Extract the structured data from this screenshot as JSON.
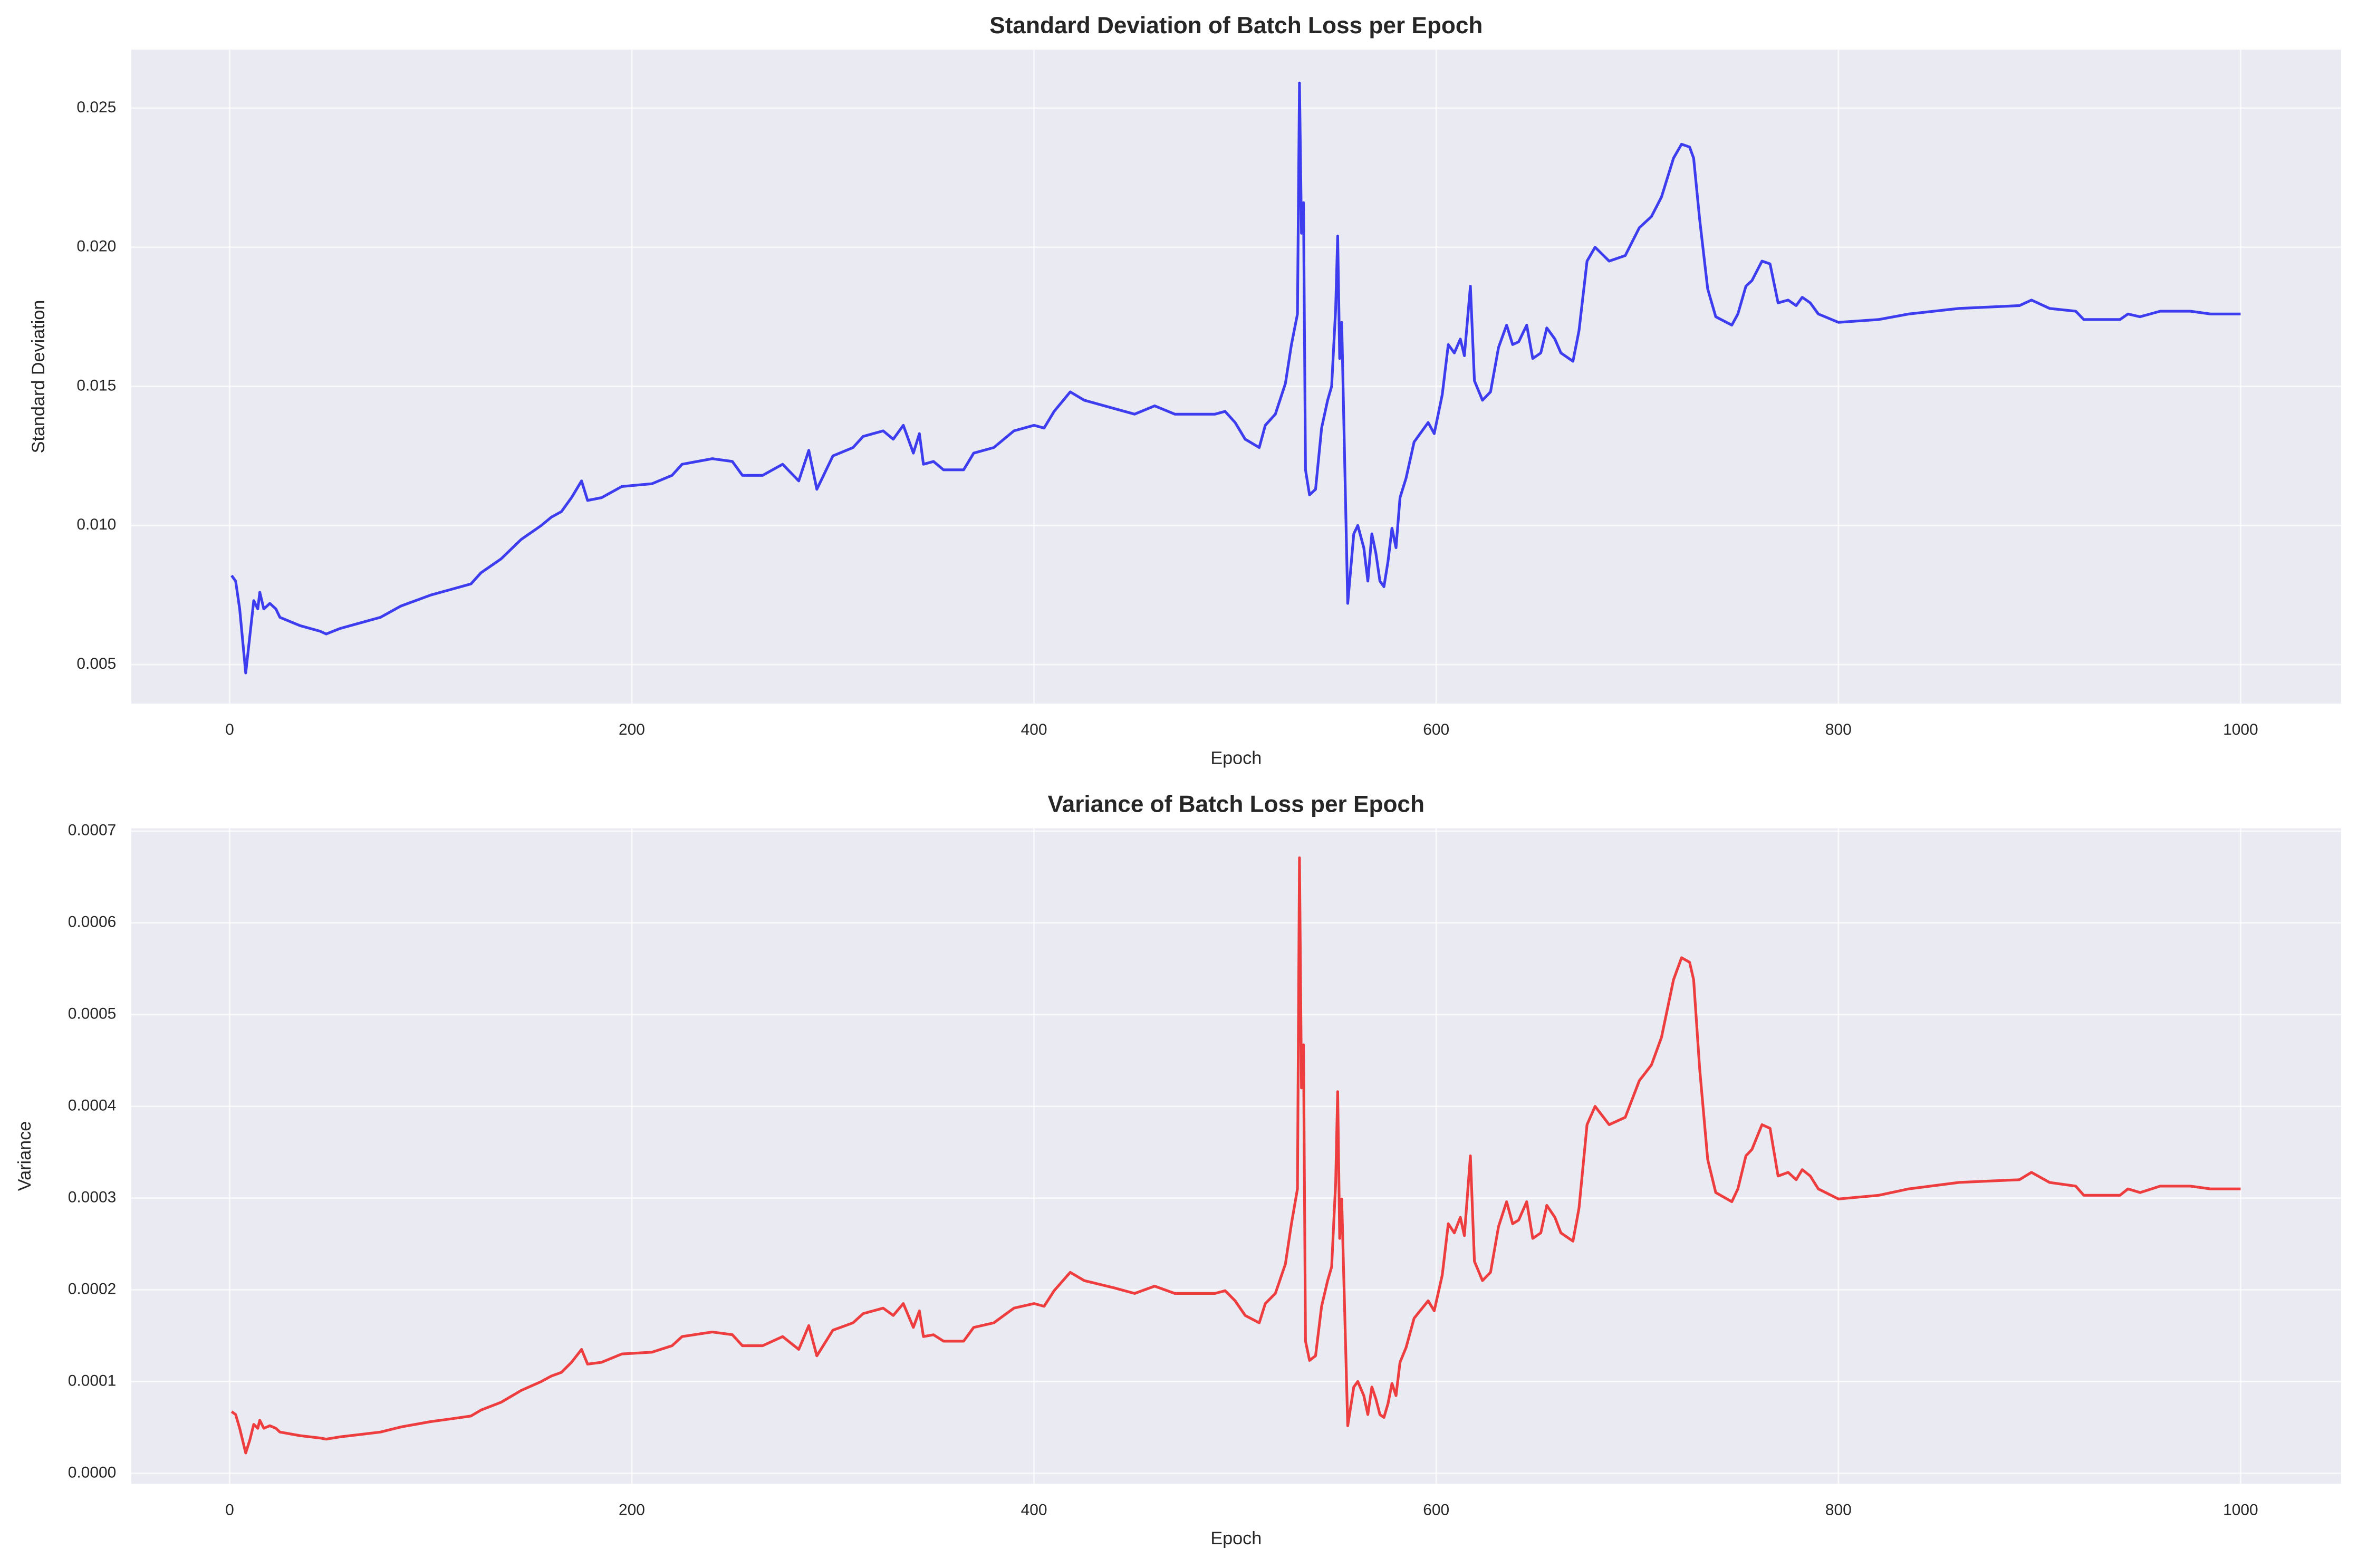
{
  "chart_data": [
    {
      "type": "line",
      "title": "Standard Deviation of Batch Loss per Epoch",
      "xlabel": "Epoch",
      "ylabel": "Standard Deviation",
      "color": "#2a2aee",
      "grid": true,
      "xlim": [
        -48.95,
        1049.95
      ],
      "xticks": [
        0,
        200,
        400,
        600,
        800,
        1000
      ],
      "ylim": [
        0.0036,
        0.0271
      ],
      "yticks": [
        0.005,
        {
          "value": 0.01,
          "label": "0.010"
        },
        0.015,
        {
          "value": 0.02,
          "label": "0.020"
        },
        0.025
      ],
      "x": [
        1,
        3,
        5,
        8,
        10,
        12,
        14,
        15,
        17,
        20,
        23,
        25,
        35,
        45,
        48,
        55,
        65,
        75,
        85,
        100,
        110,
        120,
        125,
        135,
        145,
        155,
        160,
        165,
        170,
        175,
        178,
        185,
        195,
        210,
        220,
        225,
        240,
        250,
        255,
        265,
        275,
        283,
        288,
        292,
        300,
        310,
        315,
        325,
        330,
        335,
        340,
        343,
        345,
        350,
        355,
        365,
        370,
        380,
        390,
        400,
        405,
        410,
        418,
        425,
        440,
        450,
        460,
        470,
        490,
        495,
        500,
        505,
        512,
        515,
        520,
        525,
        528,
        531,
        532,
        533,
        534,
        535,
        537,
        540,
        543,
        546,
        548,
        550,
        551,
        552,
        553,
        556,
        559,
        561,
        564,
        566,
        568,
        570,
        572,
        574,
        576,
        578,
        580,
        582,
        585,
        589,
        596,
        599,
        603,
        606,
        609,
        612,
        614,
        617,
        619,
        623,
        627,
        631,
        635,
        638,
        641,
        645,
        648,
        652,
        655,
        659,
        662,
        668,
        671,
        675,
        679,
        686,
        694,
        701,
        707,
        712,
        718,
        722,
        726,
        728,
        731,
        735,
        739,
        747,
        750,
        754,
        757,
        762,
        766,
        770,
        775,
        779,
        782,
        786,
        790,
        800,
        820,
        835,
        860,
        890,
        896,
        905,
        918,
        922,
        940,
        944,
        950,
        960,
        975,
        985,
        1000
      ],
      "values": [
        0.0082,
        0.008,
        0.007,
        0.0047,
        0.006,
        0.0073,
        0.007,
        0.0076,
        0.007,
        0.0072,
        0.007,
        0.0067,
        0.0064,
        0.0062,
        0.0061,
        0.0063,
        0.0065,
        0.0067,
        0.0071,
        0.0075,
        0.0077,
        0.0079,
        0.0083,
        0.0088,
        0.0095,
        0.01,
        0.0103,
        0.0105,
        0.011,
        0.0116,
        0.0109,
        0.011,
        0.0114,
        0.0115,
        0.0118,
        0.0122,
        0.0124,
        0.0123,
        0.0118,
        0.0118,
        0.0122,
        0.0116,
        0.0127,
        0.0113,
        0.0125,
        0.0128,
        0.0132,
        0.0134,
        0.0131,
        0.0136,
        0.0126,
        0.0133,
        0.0122,
        0.0123,
        0.012,
        0.012,
        0.0126,
        0.0128,
        0.0134,
        0.0136,
        0.0135,
        0.0141,
        0.0148,
        0.0145,
        0.0142,
        0.014,
        0.0143,
        0.014,
        0.014,
        0.0141,
        0.0137,
        0.0131,
        0.0128,
        0.0136,
        0.014,
        0.0151,
        0.0165,
        0.0176,
        0.0259,
        0.0205,
        0.0216,
        0.012,
        0.0111,
        0.0113,
        0.0135,
        0.0145,
        0.015,
        0.0178,
        0.0204,
        0.016,
        0.0173,
        0.0072,
        0.0097,
        0.01,
        0.0092,
        0.008,
        0.0097,
        0.009,
        0.008,
        0.0078,
        0.0087,
        0.0099,
        0.0092,
        0.011,
        0.0117,
        0.013,
        0.0137,
        0.0133,
        0.0147,
        0.0165,
        0.0162,
        0.0167,
        0.0161,
        0.0186,
        0.0152,
        0.0145,
        0.0148,
        0.0164,
        0.0172,
        0.0165,
        0.0166,
        0.0172,
        0.016,
        0.0162,
        0.0171,
        0.0167,
        0.0162,
        0.0159,
        0.017,
        0.0195,
        0.02,
        0.0195,
        0.0197,
        0.0207,
        0.0211,
        0.0218,
        0.0232,
        0.0237,
        0.0236,
        0.0232,
        0.021,
        0.0185,
        0.0175,
        0.0172,
        0.0176,
        0.0186,
        0.0188,
        0.0195,
        0.0194,
        0.018,
        0.0181,
        0.0179,
        0.0182,
        0.018,
        0.0176,
        0.0173,
        0.0174,
        0.0176,
        0.0178,
        0.0179,
        0.0181,
        0.0178,
        0.0177,
        0.0174,
        0.0174,
        0.0176,
        0.0175,
        0.0177,
        0.0177,
        0.0176,
        0.0176
      ]
    },
    {
      "type": "line",
      "title": "Variance of Batch Loss per Epoch",
      "xlabel": "Epoch",
      "ylabel": "Variance",
      "color": "#ee2a2a",
      "grid": true,
      "xlim": [
        -48.95,
        1049.95
      ],
      "xticks": [
        0,
        200,
        400,
        600,
        800,
        1000
      ],
      "ylim": [
        -1.15e-05,
        0.000703
      ],
      "yticks": [
        {
          "value": 0,
          "label": "0.0000"
        },
        0.0001,
        0.0002,
        0.0003,
        0.0004,
        0.0005,
        0.0006,
        0.0007
      ],
      "x": [
        1,
        3,
        5,
        8,
        10,
        12,
        14,
        15,
        17,
        20,
        23,
        25,
        35,
        45,
        48,
        55,
        65,
        75,
        85,
        100,
        110,
        120,
        125,
        135,
        145,
        155,
        160,
        165,
        170,
        175,
        178,
        185,
        195,
        210,
        220,
        225,
        240,
        250,
        255,
        265,
        275,
        283,
        288,
        292,
        300,
        310,
        315,
        325,
        330,
        335,
        340,
        343,
        345,
        350,
        355,
        365,
        370,
        380,
        390,
        400,
        405,
        410,
        418,
        425,
        440,
        450,
        460,
        470,
        490,
        495,
        500,
        505,
        512,
        515,
        520,
        525,
        528,
        531,
        532,
        533,
        534,
        535,
        537,
        540,
        543,
        546,
        548,
        550,
        551,
        552,
        553,
        556,
        559,
        561,
        564,
        566,
        568,
        570,
        572,
        574,
        576,
        578,
        580,
        582,
        585,
        589,
        596,
        599,
        603,
        606,
        609,
        612,
        614,
        617,
        619,
        623,
        627,
        631,
        635,
        638,
        641,
        645,
        648,
        652,
        655,
        659,
        662,
        668,
        671,
        675,
        679,
        686,
        694,
        701,
        707,
        712,
        718,
        722,
        726,
        728,
        731,
        735,
        739,
        747,
        750,
        754,
        757,
        762,
        766,
        770,
        775,
        779,
        782,
        786,
        790,
        800,
        820,
        835,
        860,
        890,
        896,
        905,
        918,
        922,
        940,
        944,
        950,
        960,
        975,
        985,
        1000
      ],
      "values": [
        6.72e-05,
        6.4e-05,
        4.9e-05,
        2.21e-05,
        3.6e-05,
        5.33e-05,
        4.9e-05,
        5.78e-05,
        4.9e-05,
        5.18e-05,
        4.9e-05,
        4.49e-05,
        4.1e-05,
        3.84e-05,
        3.72e-05,
        3.97e-05,
        4.23e-05,
        4.49e-05,
        5.04e-05,
        5.63e-05,
        5.93e-05,
        6.24e-05,
        6.89e-05,
        7.74e-05,
        9.03e-05,
        0.0001,
        0.000106,
        0.00011,
        0.000121,
        0.000135,
        0.000119,
        0.000121,
        0.00013,
        0.000132,
        0.000139,
        0.000149,
        0.000154,
        0.000151,
        0.000139,
        0.000139,
        0.000149,
        0.000135,
        0.000161,
        0.000128,
        0.000156,
        0.000164,
        0.000174,
        0.00018,
        0.000172,
        0.000185,
        0.000159,
        0.000177,
        0.000149,
        0.000151,
        0.000144,
        0.000144,
        0.000159,
        0.000164,
        0.00018,
        0.000185,
        0.000182,
        0.000199,
        0.000219,
        0.00021,
        0.000202,
        0.000196,
        0.000204,
        0.000196,
        0.000196,
        0.000199,
        0.000188,
        0.000172,
        0.000164,
        0.000185,
        0.000196,
        0.000228,
        0.000272,
        0.00031,
        0.000671,
        0.00042,
        0.000467,
        0.000144,
        0.000123,
        0.000128,
        0.000182,
        0.00021,
        0.000225,
        0.000317,
        0.000416,
        0.000256,
        0.000299,
        5.18e-05,
        9.4e-05,
        0.0001,
        8.46e-05,
        6.4e-05,
        9.4e-05,
        8.1e-05,
        6.4e-05,
        6.08e-05,
        7.57e-05,
        9.8e-05,
        8.46e-05,
        0.000121,
        0.000137,
        0.000169,
        0.000188,
        0.000177,
        0.000216,
        0.000272,
        0.000262,
        0.000279,
        0.000259,
        0.000346,
        0.000231,
        0.00021,
        0.000219,
        0.000269,
        0.000296,
        0.000272,
        0.000276,
        0.000296,
        0.000256,
        0.000262,
        0.000292,
        0.000279,
        0.000262,
        0.000253,
        0.000289,
        0.00038,
        0.0004,
        0.00038,
        0.000388,
        0.000428,
        0.000445,
        0.000475,
        0.000538,
        0.000562,
        0.000557,
        0.000538,
        0.000441,
        0.000342,
        0.000306,
        0.000296,
        0.00031,
        0.000346,
        0.000353,
        0.00038,
        0.000376,
        0.000324,
        0.000328,
        0.00032,
        0.000331,
        0.000324,
        0.00031,
        0.000299,
        0.000303,
        0.00031,
        0.000317,
        0.00032,
        0.000328,
        0.000317,
        0.000313,
        0.000303,
        0.000303,
        0.00031,
        0.000306,
        0.000313,
        0.000313,
        0.00031,
        0.00031
      ]
    }
  ]
}
